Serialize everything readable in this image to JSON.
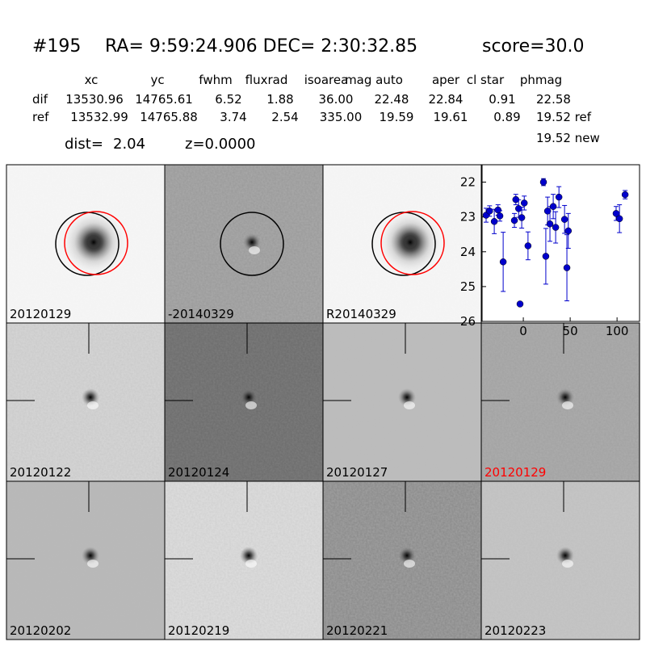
{
  "header": {
    "id": "#195",
    "coords": "RA= 9:59:24.906 DEC= 2:30:32.85",
    "score": "score=30.0"
  },
  "table": {
    "columns": [
      "xc",
      "yc",
      "fwhm",
      "fluxrad",
      "isoarea",
      "mag auto",
      "aper",
      "cl star",
      "phmag"
    ],
    "rows": [
      [
        "dif",
        "13530.96",
        "14765.61",
        "6.52",
        "1.88",
        "36.00",
        "22.48",
        "22.84",
        "0.91",
        "22.58"
      ],
      [
        "ref",
        "13532.99",
        "14765.88",
        "3.74",
        "2.54",
        "335.00",
        "19.59",
        "19.61",
        "0.89",
        "19.52 ref"
      ]
    ],
    "extra": "19.52 new",
    "dist_label": "dist=",
    "dist": "2.04",
    "z": "z=0.0000"
  },
  "panels": [
    {
      "label": "20120129",
      "color": "#000000"
    },
    {
      "label": "-20140329",
      "color": "#000000"
    },
    {
      "label": "R20140329",
      "color": "#000000"
    },
    {
      "label": "20120122",
      "color": "#000000"
    },
    {
      "label": "20120124",
      "color": "#000000"
    },
    {
      "label": "20120127",
      "color": "#000000"
    },
    {
      "label": "20120129",
      "color": "#ff0000"
    },
    {
      "label": "20120202",
      "color": "#000000"
    },
    {
      "label": "20120219",
      "color": "#000000"
    },
    {
      "label": "20120221",
      "color": "#000000"
    },
    {
      "label": "20120223",
      "color": "#000000"
    }
  ],
  "chart_data": {
    "type": "scatter",
    "color": "#0000cc",
    "y_inverted": true,
    "x": [
      -39.7,
      -36,
      -31,
      -27,
      -25,
      -21.5,
      -9.5,
      -8,
      -5,
      -3.5,
      -1.7,
      1,
      5,
      21.5,
      24,
      25.9,
      28.4,
      31.9,
      34.5,
      38,
      44,
      46.5,
      48,
      99,
      102.6,
      108.6
    ],
    "values": [
      22.95,
      22.83,
      23.13,
      22.8,
      22.97,
      24.29,
      23.1,
      22.5,
      22.76,
      25.5,
      23.02,
      22.6,
      23.83,
      22.0,
      24.13,
      22.83,
      23.2,
      22.7,
      23.3,
      22.43,
      23.07,
      24.46,
      23.4,
      22.9,
      23.05,
      22.36
    ],
    "errors": [
      0.2,
      0.15,
      0.35,
      0.15,
      0.15,
      0.85,
      0.2,
      0.15,
      0.25,
      0.05,
      0.3,
      0.2,
      0.4,
      0.1,
      0.8,
      0.4,
      0.5,
      0.35,
      0.45,
      0.3,
      0.4,
      0.95,
      0.5,
      0.2,
      0.4,
      0.12
    ],
    "xlim": [
      -44,
      124
    ],
    "ylim": [
      26,
      21.5
    ],
    "xticks": [
      0,
      50,
      100
    ],
    "yticks": [
      22,
      23,
      24,
      25,
      26
    ]
  }
}
